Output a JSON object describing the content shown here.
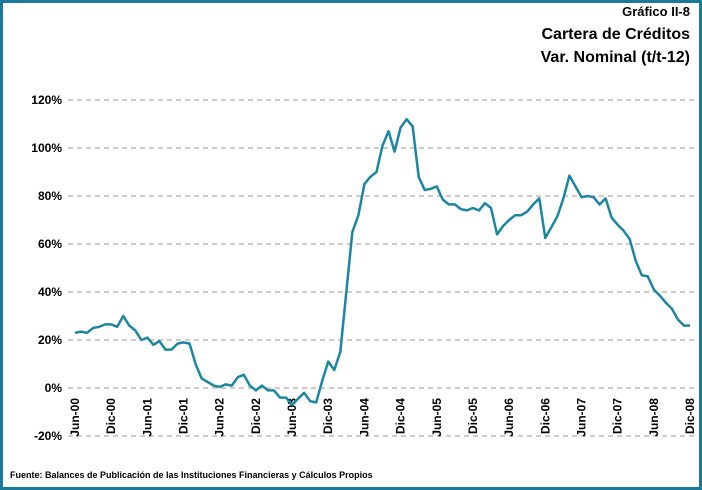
{
  "chart_data": {
    "type": "line",
    "label": "Gráfico II-8",
    "title": "Cartera de Créditos",
    "subtitle": "Var. Nominal (t/t-12)",
    "source": "Fuente: Balances de Publicación de las Instituciones Financieras y Cálculos Propios",
    "categories": [
      "Jun-00",
      null,
      null,
      null,
      null,
      null,
      "Dic-00",
      null,
      null,
      null,
      null,
      null,
      "Jun-01",
      null,
      null,
      null,
      null,
      null,
      "Dic-01",
      null,
      null,
      null,
      null,
      null,
      "Jun-02",
      null,
      null,
      null,
      null,
      null,
      "Dic-02",
      null,
      null,
      null,
      null,
      null,
      "Jun-03",
      null,
      null,
      null,
      null,
      null,
      "Dic-03",
      null,
      null,
      null,
      null,
      null,
      "Jun-04",
      null,
      null,
      null,
      null,
      null,
      "Dic-04",
      null,
      null,
      null,
      null,
      null,
      "Jun-05",
      null,
      null,
      null,
      null,
      null,
      "Dic-05",
      null,
      null,
      null,
      null,
      null,
      "Jun-06",
      null,
      null,
      null,
      null,
      null,
      "Dic-06",
      null,
      null,
      null,
      null,
      null,
      "Jun-07",
      null,
      null,
      null,
      null,
      null,
      "Dic-07",
      null,
      null,
      null,
      null,
      null,
      "Jun-08",
      null,
      null,
      null,
      null,
      null,
      "Dic-08"
    ],
    "series": [
      {
        "color": "#1b86a4",
        "values": [
          23,
          23.5,
          23,
          25,
          25.5,
          26.5,
          26.5,
          25.5,
          30,
          26,
          24,
          20,
          21,
          18,
          19.5,
          16,
          16,
          18.5,
          19,
          18.5,
          10,
          4,
          2.5,
          1,
          0.5,
          1.5,
          1,
          4.5,
          5.5,
          1,
          -1,
          1,
          -1,
          -1,
          -4,
          -4,
          -7,
          -4.5,
          -2,
          -5.5,
          -6,
          3,
          11,
          7.5,
          15,
          40,
          65,
          72,
          85,
          88,
          90,
          101,
          107,
          98.5,
          108.5,
          112,
          109,
          88,
          82.5,
          83,
          84,
          78.5,
          76.5,
          76.5,
          74.5,
          74,
          75,
          74,
          77,
          75,
          64,
          67.5,
          70,
          72,
          72,
          73.5,
          76.5,
          79,
          62.5,
          67,
          71.5,
          79,
          88.5,
          84,
          79.5,
          80,
          79.5,
          76.5,
          79,
          71,
          68,
          65.5,
          62,
          53,
          47,
          46.5,
          41,
          38.5,
          35.5,
          33,
          28.5,
          26,
          26
        ]
      }
    ],
    "ylim": [
      -20,
      120
    ],
    "yticks": [
      {
        "value": -20,
        "label": "-20%"
      },
      {
        "value": 0,
        "label": "0%"
      },
      {
        "value": 20,
        "label": "20%"
      },
      {
        "value": 40,
        "label": "40%"
      },
      {
        "value": 60,
        "label": "60%"
      },
      {
        "value": 80,
        "label": "80%"
      },
      {
        "value": 100,
        "label": "100%"
      },
      {
        "value": 120,
        "label": "120%"
      }
    ],
    "grid": true
  }
}
